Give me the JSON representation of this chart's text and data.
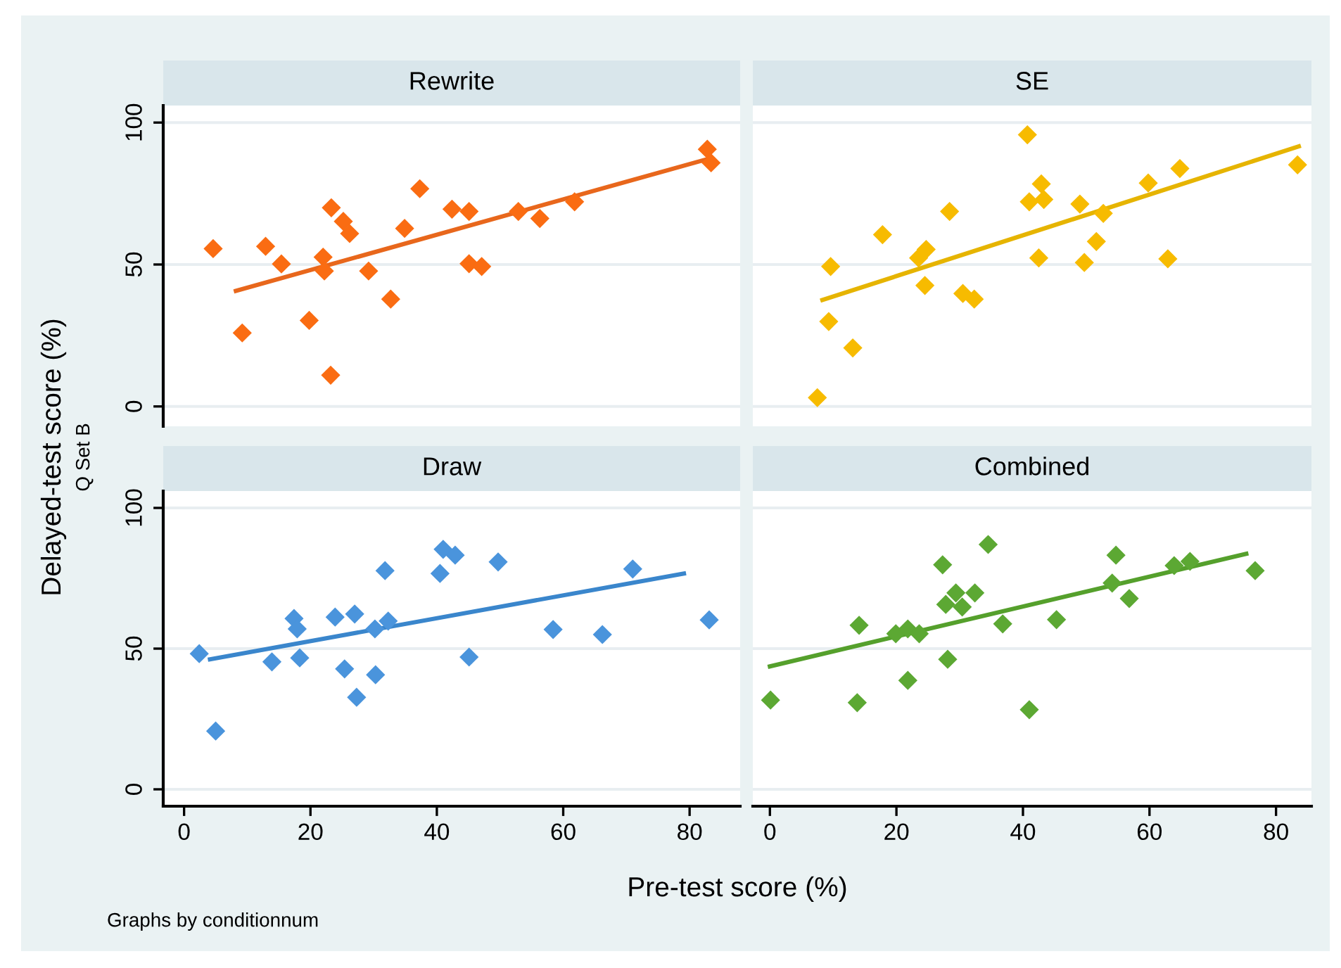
{
  "chart_data": [
    {
      "type": "scatter",
      "title": "Rewrite",
      "ylabel": "Delayed-test score (%)",
      "annotations": [
        "Q Set B"
      ],
      "grid": "y",
      "tick_labels": "y",
      "xlim": [
        -3.3,
        88
      ],
      "ylim": [
        -7,
        106
      ],
      "xticks": [
        0,
        20,
        40,
        60,
        80
      ],
      "yticks": [
        0,
        50,
        100
      ],
      "series": [
        {
          "marker": "diamond",
          "color": "#fa6c12",
          "x": [
            4.6,
            9.2,
            12.9,
            15.4,
            19.8,
            22.0,
            22.2,
            23.2,
            23.3,
            25.2,
            26.2,
            29.2,
            32.7,
            34.9,
            37.3,
            42.4,
            45.1,
            45.1,
            47.1,
            52.9,
            56.3,
            61.8,
            82.8,
            83.4
          ],
          "values": [
            55.6,
            25.9,
            56.4,
            50.2,
            30.3,
            52.6,
            47.7,
            11.0,
            70.0,
            65.2,
            60.9,
            47.7,
            37.8,
            62.7,
            76.7,
            69.5,
            68.7,
            50.3,
            49.3,
            68.7,
            66.2,
            72.1,
            90.6,
            85.8
          ]
        },
        {
          "type": "line",
          "color": "#e8671c",
          "x": [
            8.2,
            83.4
          ],
          "values": [
            40.7,
            87.5
          ]
        }
      ]
    },
    {
      "type": "scatter",
      "title": "SE",
      "grid": "y",
      "tick_labels": false,
      "xlim": [
        -2.7,
        85.6
      ],
      "ylim": [
        -7,
        106
      ],
      "xticks": [
        0,
        20,
        40,
        60,
        80
      ],
      "yticks": [
        0,
        50,
        100
      ],
      "series": [
        {
          "marker": "diamond",
          "color": "#f7bb00",
          "x": [
            7.5,
            9.3,
            9.6,
            13.1,
            17.8,
            23.5,
            24.7,
            24.5,
            28.4,
            30.5,
            32.3,
            40.7,
            41.0,
            42.9,
            43.3,
            42.5,
            49.0,
            49.7,
            51.6,
            52.7,
            59.8,
            62.9,
            64.8,
            83.4
          ],
          "values": [
            3.1,
            29.9,
            49.3,
            20.6,
            60.5,
            52.3,
            55.3,
            42.6,
            68.7,
            39.8,
            37.8,
            95.7,
            72.1,
            78.4,
            72.9,
            52.3,
            71.3,
            50.7,
            58.1,
            68.0,
            78.7,
            52.0,
            83.8,
            85.1
          ]
        },
        {
          "type": "line",
          "color": "#e6b400",
          "x": [
            8.3,
            83.6
          ],
          "values": [
            37.5,
            91.6
          ]
        }
      ]
    },
    {
      "type": "scatter",
      "title": "Draw",
      "xlabel": "Pre-test score (%)",
      "annotations": [
        "Graphs by conditionnum"
      ],
      "grid": "y",
      "xlim": [
        -3.3,
        88
      ],
      "ylim": [
        -6,
        106
      ],
      "xticks": [
        0,
        20,
        40,
        60,
        80
      ],
      "yticks": [
        0,
        50,
        100
      ],
      "series": [
        {
          "marker": "diamond",
          "color": "#4a94dc",
          "x": [
            2.4,
            5.0,
            13.9,
            17.4,
            17.9,
            18.3,
            23.9,
            25.4,
            27.0,
            27.3,
            30.2,
            30.3,
            31.8,
            32.3,
            40.5,
            41.0,
            42.9,
            45.1,
            49.7,
            58.4,
            66.2,
            71.0,
            83.1
          ],
          "values": [
            48.2,
            20.7,
            45.3,
            60.7,
            57.0,
            46.7,
            61.2,
            42.8,
            62.3,
            32.7,
            57.0,
            40.7,
            77.7,
            59.8,
            76.7,
            85.3,
            83.2,
            47.0,
            80.8,
            56.8,
            55.0,
            78.3,
            60.2
          ]
        },
        {
          "type": "line",
          "color": "#3a86cc",
          "x": [
            4.1,
            79.1
          ],
          "values": [
            46.2,
            76.7
          ]
        }
      ]
    },
    {
      "type": "scatter",
      "title": "Combined",
      "grid": "y",
      "tick_labels": "x",
      "xlim": [
        -2.7,
        85.6
      ],
      "ylim": [
        -6,
        106
      ],
      "xticks": [
        0,
        20,
        40,
        60,
        80
      ],
      "yticks": [
        0,
        50,
        100
      ],
      "series": [
        {
          "marker": "diamond",
          "color": "#5ca833",
          "x": [
            0.1,
            13.8,
            14.1,
            19.9,
            21.8,
            21.8,
            23.6,
            27.3,
            27.8,
            28.1,
            29.4,
            30.4,
            32.4,
            34.5,
            36.8,
            41.0,
            45.3,
            54.1,
            54.7,
            56.8,
            63.9,
            66.4,
            76.7
          ],
          "values": [
            31.7,
            30.8,
            58.3,
            55.3,
            57.0,
            38.7,
            55.3,
            79.8,
            65.7,
            46.2,
            69.8,
            64.8,
            69.8,
            87.0,
            58.8,
            28.3,
            60.3,
            73.3,
            83.2,
            67.8,
            79.5,
            81.0,
            77.7
          ]
        },
        {
          "type": "line",
          "color": "#55a02c",
          "x": [
            0.0,
            75.3
          ],
          "values": [
            43.7,
            83.7
          ]
        }
      ]
    }
  ]
}
